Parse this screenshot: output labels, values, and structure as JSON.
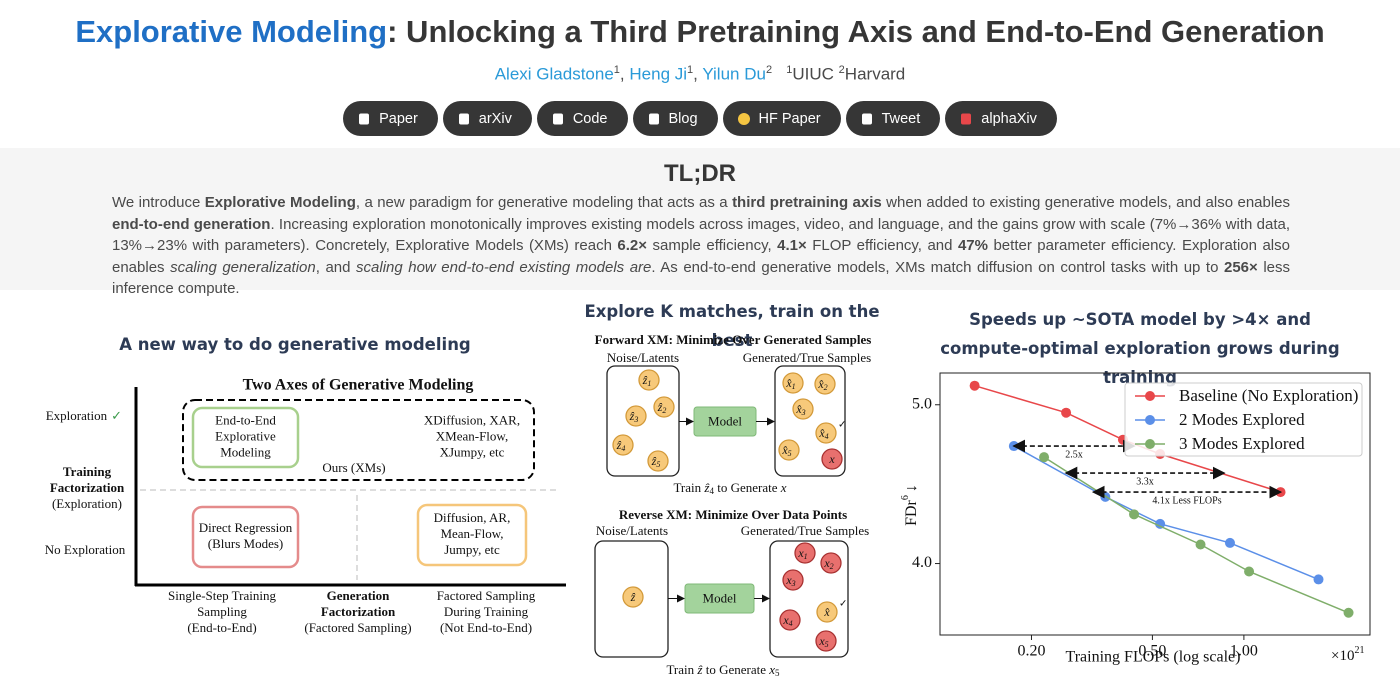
{
  "header": {
    "title_highlight": "Explorative Modeling",
    "title_rest": ": Unlocking a Third Pretraining Axis and End-to-End Generation",
    "authors": [
      {
        "name": "Alexi Gladstone",
        "sup": "1"
      },
      {
        "name": "Heng Ji",
        "sup": "1"
      },
      {
        "name": "Yilun Du",
        "sup": "2"
      }
    ],
    "author_separator": ",",
    "affiliations": [
      {
        "sup": "1",
        "name": "UIUC"
      },
      {
        "sup": "2",
        "name": "Harvard"
      }
    ],
    "buttons": [
      "Paper",
      "arXiv",
      "Code",
      "Blog",
      "HF Paper",
      "Tweet",
      "alphaXiv"
    ]
  },
  "tldr": {
    "title": "TL;DR",
    "paragraph": [
      {
        "text": "We introduce "
      },
      {
        "text": "Explorative Modeling",
        "style": "bold"
      },
      {
        "text": ", a new paradigm for generative modeling that acts as a "
      },
      {
        "text": "third pretraining axis",
        "style": "bold"
      },
      {
        "text": " when added to existing generative models, and also enables "
      },
      {
        "text": "end-to-end generation",
        "style": "bold"
      },
      {
        "text": ". Increasing exploration monotonically improves existing models across images, video, and language, and the gains grow with scale (7%→36% with data, 13%→23% with parameters). Concretely, Explorative Models (XMs) reach "
      },
      {
        "text": "6.2×",
        "style": "bold"
      },
      {
        "text": " sample efficiency, "
      },
      {
        "text": "4.1×",
        "style": "bold"
      },
      {
        "text": " FLOP efficiency, and "
      },
      {
        "text": "47%",
        "style": "bold"
      },
      {
        "text": " better parameter efficiency. Exploration also enables "
      },
      {
        "text": "scaling generalization",
        "style": "italic"
      },
      {
        "text": ", and "
      },
      {
        "text": "scaling how end-to-end existing models are",
        "style": "italic"
      },
      {
        "text": ". As end-to-end generative models, XMs match diffusion on control tasks with up to "
      },
      {
        "text": "256×",
        "style": "bold"
      },
      {
        "text": " less inference compute."
      }
    ]
  },
  "figure1": {
    "title": "A new way to do generative modeling",
    "diagram_title": "Two Axes of Generative Modeling",
    "y_exploration": "Exploration",
    "y_check": "✓",
    "y_axis_title": [
      "Training",
      "Factorization"
    ],
    "y_axis_sub": "(Exploration)",
    "y_no_exploration": "No Exploration",
    "ours_label": "Ours (XMs)",
    "boxes": [
      {
        "lines": [
          "End-to-End",
          "Explorative",
          "Modeling"
        ],
        "kind": "green"
      },
      {
        "lines": [
          "XDiffusion, XAR,",
          "XMean-Flow,",
          "XJumpy, etc"
        ],
        "kind": "plain"
      },
      {
        "lines": [
          "Direct Regression",
          "(Blurs Modes)"
        ],
        "kind": "red"
      },
      {
        "lines": [
          "Diffusion, AR,",
          "Mean-Flow,",
          "Jumpy, etc"
        ],
        "kind": "orange"
      }
    ],
    "x_labels": [
      {
        "lines": [
          "Single-Step Training",
          "Sampling",
          "(End-to-End)"
        ]
      },
      {
        "lines": [
          "Generation",
          "Factorization",
          "(Factored Sampling)"
        ],
        "bold_lines": 2
      },
      {
        "lines": [
          "Factored Sampling",
          "During Training",
          "(Not End-to-End)"
        ]
      }
    ]
  },
  "figure2": {
    "title": "Explore K matches, train on the best",
    "panels": [
      {
        "heading": "Forward XM: Minimize Over Generated Samples",
        "left_label": "Noise/Latents",
        "right_label": "Generated/True Samples",
        "model": "Model",
        "left_nodes": [
          {
            "label": "ẑ",
            "sub": "1"
          },
          {
            "label": "ẑ",
            "sub": "2"
          },
          {
            "label": "ẑ",
            "sub": "3"
          },
          {
            "label": "ẑ",
            "sub": "4"
          },
          {
            "label": "ẑ",
            "sub": "5"
          }
        ],
        "right_nodes": [
          {
            "label": "x̂",
            "sub": "1"
          },
          {
            "label": "x̂",
            "sub": "2"
          },
          {
            "label": "x̂",
            "sub": "3"
          },
          {
            "label": "x̂",
            "sub": "4",
            "check": "✓"
          },
          {
            "label": "x̂",
            "sub": "5"
          },
          {
            "label": "x",
            "kind": "true"
          }
        ],
        "caption": [
          {
            "text": "Train "
          },
          {
            "text": "ẑ",
            "math": true
          },
          {
            "text": "4",
            "sub": true
          },
          {
            "text": " to Generate "
          },
          {
            "text": "x",
            "math": true
          }
        ]
      },
      {
        "heading": "Reverse XM: Minimize Over Data Points",
        "left_label": "Noise/Latents",
        "right_label": "Generated/True Samples",
        "model": "Model",
        "left_nodes": [
          {
            "label": "ẑ"
          }
        ],
        "right_nodes": [
          {
            "label": "x",
            "sub": "1",
            "kind": "true"
          },
          {
            "label": "x",
            "sub": "2",
            "kind": "true"
          },
          {
            "label": "x",
            "sub": "3",
            "kind": "true"
          },
          {
            "label": "x̂",
            "check": "✓"
          },
          {
            "label": "x",
            "sub": "4",
            "kind": "true"
          },
          {
            "label": "x",
            "sub": "5",
            "kind": "true"
          }
        ],
        "caption": [
          {
            "text": "Train "
          },
          {
            "text": "ẑ",
            "math": true
          },
          {
            "text": " to Generate "
          },
          {
            "text": "x",
            "math": true
          },
          {
            "text": "5",
            "sub": true
          }
        ]
      }
    ]
  },
  "chart_data": {
    "type": "line",
    "title": "Speeds up ~SOTA model by >4× and compute-optimal exploration grows during training",
    "x_label": "Training FLOPs (log scale)",
    "x_offset": "×10",
    "x_offset_exp": "21",
    "y_label": "FDr",
    "y_label_sup": "6",
    "y_label_arrow": "↓",
    "xscale": "log",
    "grid": false,
    "legend": "upper right",
    "xlim": [
      0.1,
      2.6
    ],
    "ylim": [
      3.55,
      5.2
    ],
    "xticks": [
      {
        "value": 0.2,
        "label": "0.20"
      },
      {
        "value": 0.5,
        "label": "0.50"
      },
      {
        "value": 1,
        "label": "1.00"
      }
    ],
    "yticks": [
      {
        "value": 4,
        "label": "4.0"
      },
      {
        "value": 5,
        "label": "5.0"
      }
    ],
    "series": [
      {
        "name": "Baseline (No Exploration)",
        "color": "#e8474a",
        "x": [
          0.13,
          0.26,
          0.4,
          0.53,
          1.32
        ],
        "values": [
          5.12,
          4.95,
          4.78,
          4.69,
          4.45
        ]
      },
      {
        "name": "2 Modes Explored",
        "color": "#5b8fe8",
        "x": [
          0.175,
          0.35,
          0.53,
          0.9,
          1.76
        ],
        "values": [
          4.74,
          4.42,
          4.25,
          4.13,
          3.9
        ]
      },
      {
        "name": "3 Modes Explored",
        "color": "#7fae6a",
        "x": [
          0.22,
          0.435,
          0.72,
          1.04,
          2.21
        ],
        "values": [
          4.67,
          4.31,
          4.12,
          3.95,
          3.69
        ]
      }
    ],
    "annotations": [
      {
        "text": "2.5x",
        "x": [
          0.175,
          0.435
        ],
        "y": 4.74
      },
      {
        "text": "3.3x",
        "x": [
          0.26,
          0.86
        ],
        "y": 4.57
      },
      {
        "text": "4.1x Less FLOPs",
        "x": [
          0.32,
          1.32
        ],
        "y": 4.45
      }
    ]
  }
}
